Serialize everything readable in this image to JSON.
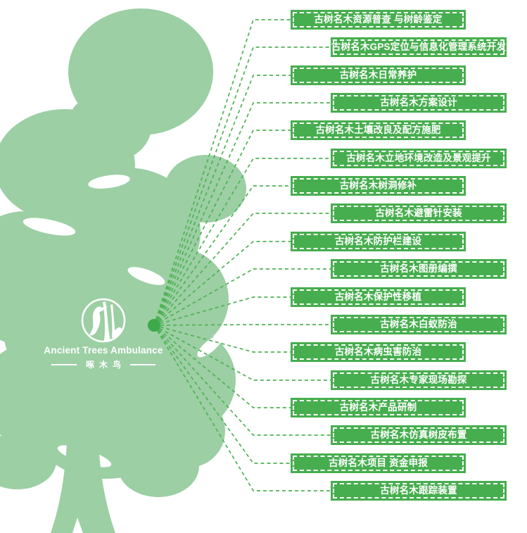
{
  "colors": {
    "tree_green": "#9ccfa4",
    "box_green": "#46ae4e",
    "line_green": "#4fb254",
    "dot_green": "#3fa84a",
    "text_white": "#ffffff",
    "background": "#ffffff"
  },
  "logo": {
    "title_en": "Ancient Trees Ambulance",
    "title_zh": "啄木鸟",
    "icon": "woodpecker-on-trunk-icon"
  },
  "services": [
    {
      "label": "古树名木资源普查 与树龄鉴定"
    },
    {
      "label": "古树名木GPS定位与信息化管理系统开发"
    },
    {
      "label": "古树名木日常养护"
    },
    {
      "label": "古树名木方案设计"
    },
    {
      "label": "古树名木土壤改良及配方施肥"
    },
    {
      "label": "古树名木立地环境改造及景观提升"
    },
    {
      "label": "古树名木树洞修补"
    },
    {
      "label": "古树名木避雷针安装"
    },
    {
      "label": "古树名木防护栏建设"
    },
    {
      "label": "古树名木图册编撰"
    },
    {
      "label": "古树名木保护性移植"
    },
    {
      "label": "古树名木白蚁防治"
    },
    {
      "label": "古树名木病虫害防治"
    },
    {
      "label": "古树名木专家现场勘探"
    },
    {
      "label": "古树名木产品研制"
    },
    {
      "label": "古树名木仿真树皮布置"
    },
    {
      "label": "古树名木项目 资金申报"
    },
    {
      "label": "古树名木跟踪装置"
    }
  ]
}
